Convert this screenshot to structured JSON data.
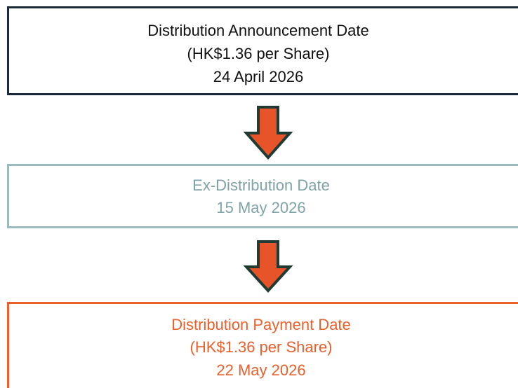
{
  "nodes": [
    {
      "lines": [
        "Distribution Announcement Date",
        "(HK$1.36 per Share)",
        "24 April 2026"
      ]
    },
    {
      "lines": [
        "Ex-Distribution Date",
        "15 May 2026"
      ]
    },
    {
      "lines": [
        "Distribution Payment Date",
        "(HK$1.36 per Share)",
        "22 May 2026"
      ]
    }
  ]
}
